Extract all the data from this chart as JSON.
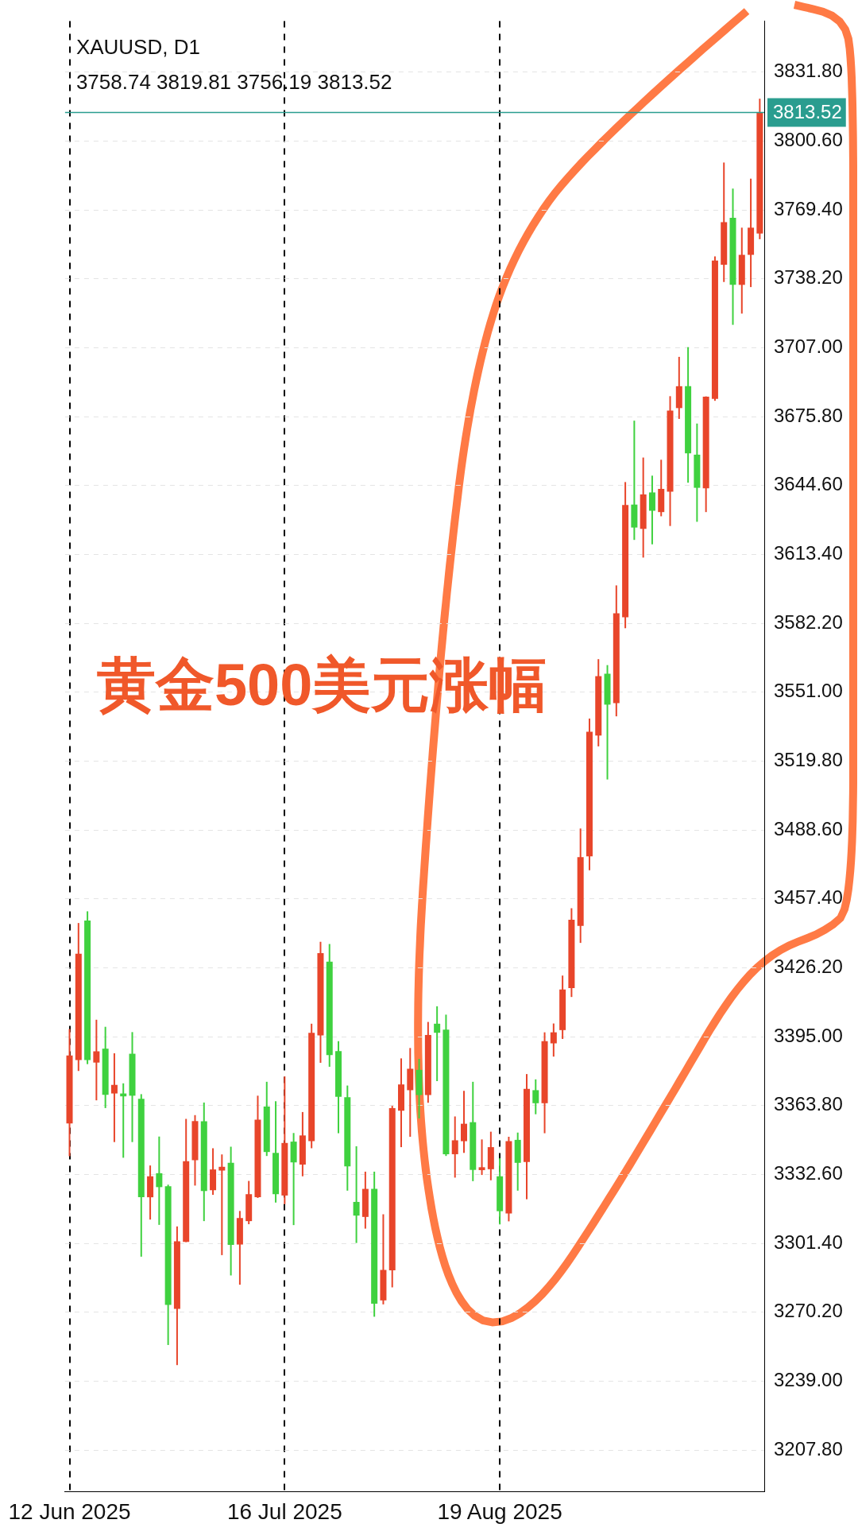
{
  "chart_data": {
    "type": "candlestick",
    "title": "XAUUSD, D1",
    "subtitle": "3758.74 3819.81 3756.19 3813.52",
    "annotations": [
      "黄金500美元涨幅"
    ],
    "categories": [
      "12 Jun 2025",
      null,
      null,
      null,
      null,
      null,
      null,
      null,
      null,
      null,
      null,
      null,
      null,
      null,
      null,
      null,
      null,
      null,
      null,
      null,
      null,
      null,
      null,
      null,
      "16 Jul 2025",
      null,
      null,
      null,
      null,
      null,
      null,
      null,
      null,
      null,
      null,
      null,
      null,
      null,
      null,
      null,
      null,
      null,
      null,
      null,
      null,
      null,
      null,
      null,
      "19 Aug 2025",
      null,
      null,
      null,
      null,
      null,
      null,
      null,
      null,
      null,
      null,
      null,
      null,
      null,
      null,
      null,
      null,
      null,
      null,
      null,
      null,
      null,
      null,
      null,
      null,
      null,
      null,
      null,
      null,
      null
    ],
    "ohlc": [
      [
        3355.7,
        3398.5,
        3340.9,
        3386.5
      ],
      [
        3384.4,
        3446.5,
        3379.5,
        3432.6
      ],
      [
        3447.6,
        3451.8,
        3382.6,
        3384.4
      ],
      [
        3383.3,
        3402.7,
        3366.2,
        3388.4
      ],
      [
        3389.6,
        3399.5,
        3362.7,
        3368.7
      ],
      [
        3369.3,
        3387.5,
        3347.3,
        3373.2
      ],
      [
        3369.3,
        3373.9,
        3340.2,
        3368.0
      ],
      [
        3387.3,
        3397.1,
        3347.3,
        3368.3
      ],
      [
        3366.9,
        3369.0,
        3295.4,
        3322.3
      ],
      [
        3322.3,
        3336.7,
        3312.2,
        3331.8
      ],
      [
        3333.2,
        3349.8,
        3309.8,
        3326.9
      ],
      [
        3327.3,
        3328.0,
        3255.4,
        3273.6
      ],
      [
        3271.8,
        3309.1,
        3246.3,
        3302.4
      ],
      [
        3302.1,
        3357.8,
        3302.0,
        3338.6
      ],
      [
        3339.1,
        3359.5,
        3327.6,
        3356.8
      ],
      [
        3356.7,
        3365.2,
        3311.5,
        3325.1
      ],
      [
        3325.5,
        3344.5,
        3323.4,
        3334.9
      ],
      [
        3334.4,
        3341.7,
        3296.1,
        3336.1
      ],
      [
        3337.9,
        3345.2,
        3286.9,
        3300.7
      ],
      [
        3300.9,
        3316.1,
        3282.7,
        3312.9
      ],
      [
        3311.5,
        3329.7,
        3310.1,
        3323.7
      ],
      [
        3322.3,
        3368.3,
        3322.0,
        3357.4
      ],
      [
        3363.4,
        3374.6,
        3341.0,
        3342.8
      ],
      [
        3342.4,
        3365.8,
        3319.9,
        3323.7
      ],
      [
        3323.1,
        3377.0,
        3319.2,
        3346.9
      ],
      [
        3347.5,
        3351.4,
        3309.7,
        3338.1
      ],
      [
        3337.1,
        3360.9,
        3331.8,
        3350.3
      ],
      [
        3347.7,
        3400.9,
        3344.5,
        3396.8
      ],
      [
        3395.6,
        3438.0,
        3383.2,
        3432.9
      ],
      [
        3429.0,
        3437.0,
        3381.4,
        3386.7
      ],
      [
        3388.5,
        3393.0,
        3351.3,
        3367.8
      ],
      [
        3367.6,
        3372.9,
        3325.3,
        3336.3
      ],
      [
        3320.2,
        3345.4,
        3301.6,
        3314.0
      ],
      [
        3313.4,
        3333.9,
        3308.1,
        3326.1
      ],
      [
        3326.1,
        3333.9,
        3268.2,
        3274.1
      ],
      [
        3275.6,
        3314.6,
        3273.8,
        3289.4
      ],
      [
        3289.2,
        3363.7,
        3281.5,
        3362.7
      ],
      [
        3361.5,
        3385.2,
        3345.0,
        3373.4
      ],
      [
        3370.8,
        3389.9,
        3349.7,
        3380.5
      ],
      [
        3380.0,
        3385.0,
        3358.0,
        3368.6
      ],
      [
        3368.6,
        3401.7,
        3365.1,
        3395.8
      ],
      [
        3400.9,
        3408.8,
        3374.9,
        3396.8
      ],
      [
        3398.2,
        3405.0,
        3341.0,
        3341.8
      ],
      [
        3341.8,
        3358.9,
        3331.2,
        3348.1
      ],
      [
        3347.7,
        3370.5,
        3342.4,
        3355.6
      ],
      [
        3356.3,
        3374.6,
        3329.6,
        3334.7
      ],
      [
        3334.6,
        3348.5,
        3332.4,
        3335.9
      ],
      [
        3335.0,
        3352.0,
        3330.0,
        3345.0
      ],
      [
        3331.8,
        3340.0,
        3310.0,
        3316.0
      ],
      [
        3315.0,
        3349.7,
        3311.4,
        3347.7
      ],
      [
        3348.3,
        3351.6,
        3325.3,
        3337.9
      ],
      [
        3338.3,
        3378.1,
        3321.4,
        3371.4
      ],
      [
        3370.8,
        3375.7,
        3359.9,
        3364.9
      ],
      [
        3364.9,
        3397.0,
        3351.3,
        3393.0
      ],
      [
        3392.0,
        3401.0,
        3386.0,
        3397.0
      ],
      [
        3398.0,
        3422.7,
        3394.0,
        3416.4
      ],
      [
        3417.0,
        3453.2,
        3413.0,
        3448.0
      ],
      [
        3445.2,
        3489.3,
        3437.5,
        3476.3
      ],
      [
        3476.7,
        3539.1,
        3470.4,
        3533.1
      ],
      [
        3531.4,
        3566.0,
        3526.5,
        3558.3
      ],
      [
        3559.4,
        3563.3,
        3511.5,
        3545.4
      ],
      [
        3546.1,
        3599.4,
        3540.1,
        3586.8
      ],
      [
        3585.0,
        3646.2,
        3580.0,
        3635.8
      ],
      [
        3636.0,
        3674.0,
        3620.0,
        3625.6
      ],
      [
        3625.0,
        3657.3,
        3612.0,
        3640.6
      ],
      [
        3641.5,
        3649.1,
        3618.0,
        3633.2
      ],
      [
        3632.6,
        3656.3,
        3630.7,
        3643.1
      ],
      [
        3641.8,
        3685.1,
        3626.3,
        3678.6
      ],
      [
        3679.7,
        3702.9,
        3674.8,
        3689.6
      ],
      [
        3689.6,
        3707.3,
        3645.9,
        3659.2
      ],
      [
        3658.6,
        3672.7,
        3628.2,
        3643.6
      ],
      [
        3643.4,
        3685.0,
        3632.6,
        3684.9
      ],
      [
        3683.9,
        3748.4,
        3683.0,
        3746.5
      ],
      [
        3744.6,
        3790.9,
        3736.8,
        3763.9
      ],
      [
        3765.9,
        3779.1,
        3717.4,
        3735.5
      ],
      [
        3735.5,
        3761.4,
        3722.5,
        3749.1
      ],
      [
        3749.1,
        3783.6,
        3734.5,
        3761.4
      ],
      [
        3758.74,
        3819.81,
        3756.19,
        3813.52
      ]
    ],
    "colors": [
      "#e8452a",
      "#e8452a",
      "#3fd13f",
      "#e8452a",
      "#3fd13f",
      "#e8452a",
      "#3fd13f",
      "#3fd13f",
      "#3fd13f",
      "#e8452a",
      "#3fd13f",
      "#3fd13f",
      "#e8452a",
      "#e8452a",
      "#e8452a",
      "#3fd13f",
      "#e8452a",
      "#e8452a",
      "#3fd13f",
      "#e8452a",
      "#e8452a",
      "#e8452a",
      "#3fd13f",
      "#3fd13f",
      "#e8452a",
      "#3fd13f",
      "#e8452a",
      "#e8452a",
      "#e8452a",
      "#3fd13f",
      "#3fd13f",
      "#3fd13f",
      "#3fd13f",
      "#e8452a",
      "#3fd13f",
      "#e8452a",
      "#e8452a",
      "#e8452a",
      "#e8452a",
      "#3fd13f",
      "#e8452a",
      "#3fd13f",
      "#3fd13f",
      "#e8452a",
      "#e8452a",
      "#3fd13f",
      "#e8452a",
      "#e8452a",
      "#3fd13f",
      "#e8452a",
      "#3fd13f",
      "#e8452a",
      "#3fd13f",
      "#e8452a",
      "#e8452a",
      "#e8452a",
      "#e8452a",
      "#e8452a",
      "#e8452a",
      "#e8452a",
      "#3fd13f",
      "#e8452a",
      "#e8452a",
      "#3fd13f",
      "#e8452a",
      "#3fd13f",
      "#e8452a",
      "#e8452a",
      "#e8452a",
      "#3fd13f",
      "#3fd13f",
      "#e8452a",
      "#e8452a",
      "#e8452a",
      "#3fd13f",
      "#e8452a",
      "#e8452a",
      "#e8452a"
    ],
    "ylim": [
      3189,
      3855
    ],
    "yticks": [
      {
        "value": 3207.8,
        "label": "3207.80"
      },
      {
        "value": 3239,
        "label": "3239.00"
      },
      {
        "value": 3270.2,
        "label": "3270.20"
      },
      {
        "value": 3301.4,
        "label": "3301.40"
      },
      {
        "value": 3332.6,
        "label": "3332.60"
      },
      {
        "value": 3363.8,
        "label": "3363.80"
      },
      {
        "value": 3395,
        "label": "3395.00"
      },
      {
        "value": 3426.2,
        "label": "3426.20"
      },
      {
        "value": 3457.4,
        "label": "3457.40"
      },
      {
        "value": 3488.6,
        "label": "3488.60"
      },
      {
        "value": 3519.8,
        "label": "3519.80"
      },
      {
        "value": 3551,
        "label": "3551.00"
      },
      {
        "value": 3582.2,
        "label": "3582.20"
      },
      {
        "value": 3613.4,
        "label": "3613.40"
      },
      {
        "value": 3644.6,
        "label": "3644.60"
      },
      {
        "value": 3675.8,
        "label": "3675.80"
      },
      {
        "value": 3707,
        "label": "3707.00"
      },
      {
        "value": 3738.2,
        "label": "3738.20"
      },
      {
        "value": 3769.4,
        "label": "3769.40"
      },
      {
        "value": 3800.6,
        "label": "3800.60"
      },
      {
        "value": 3831.8,
        "label": "3831.80"
      }
    ],
    "ref_lines": [
      {
        "axis": "y",
        "value": 3813.52,
        "label": "3813.52",
        "color": "#2a9d8f"
      }
    ],
    "grid": true
  }
}
